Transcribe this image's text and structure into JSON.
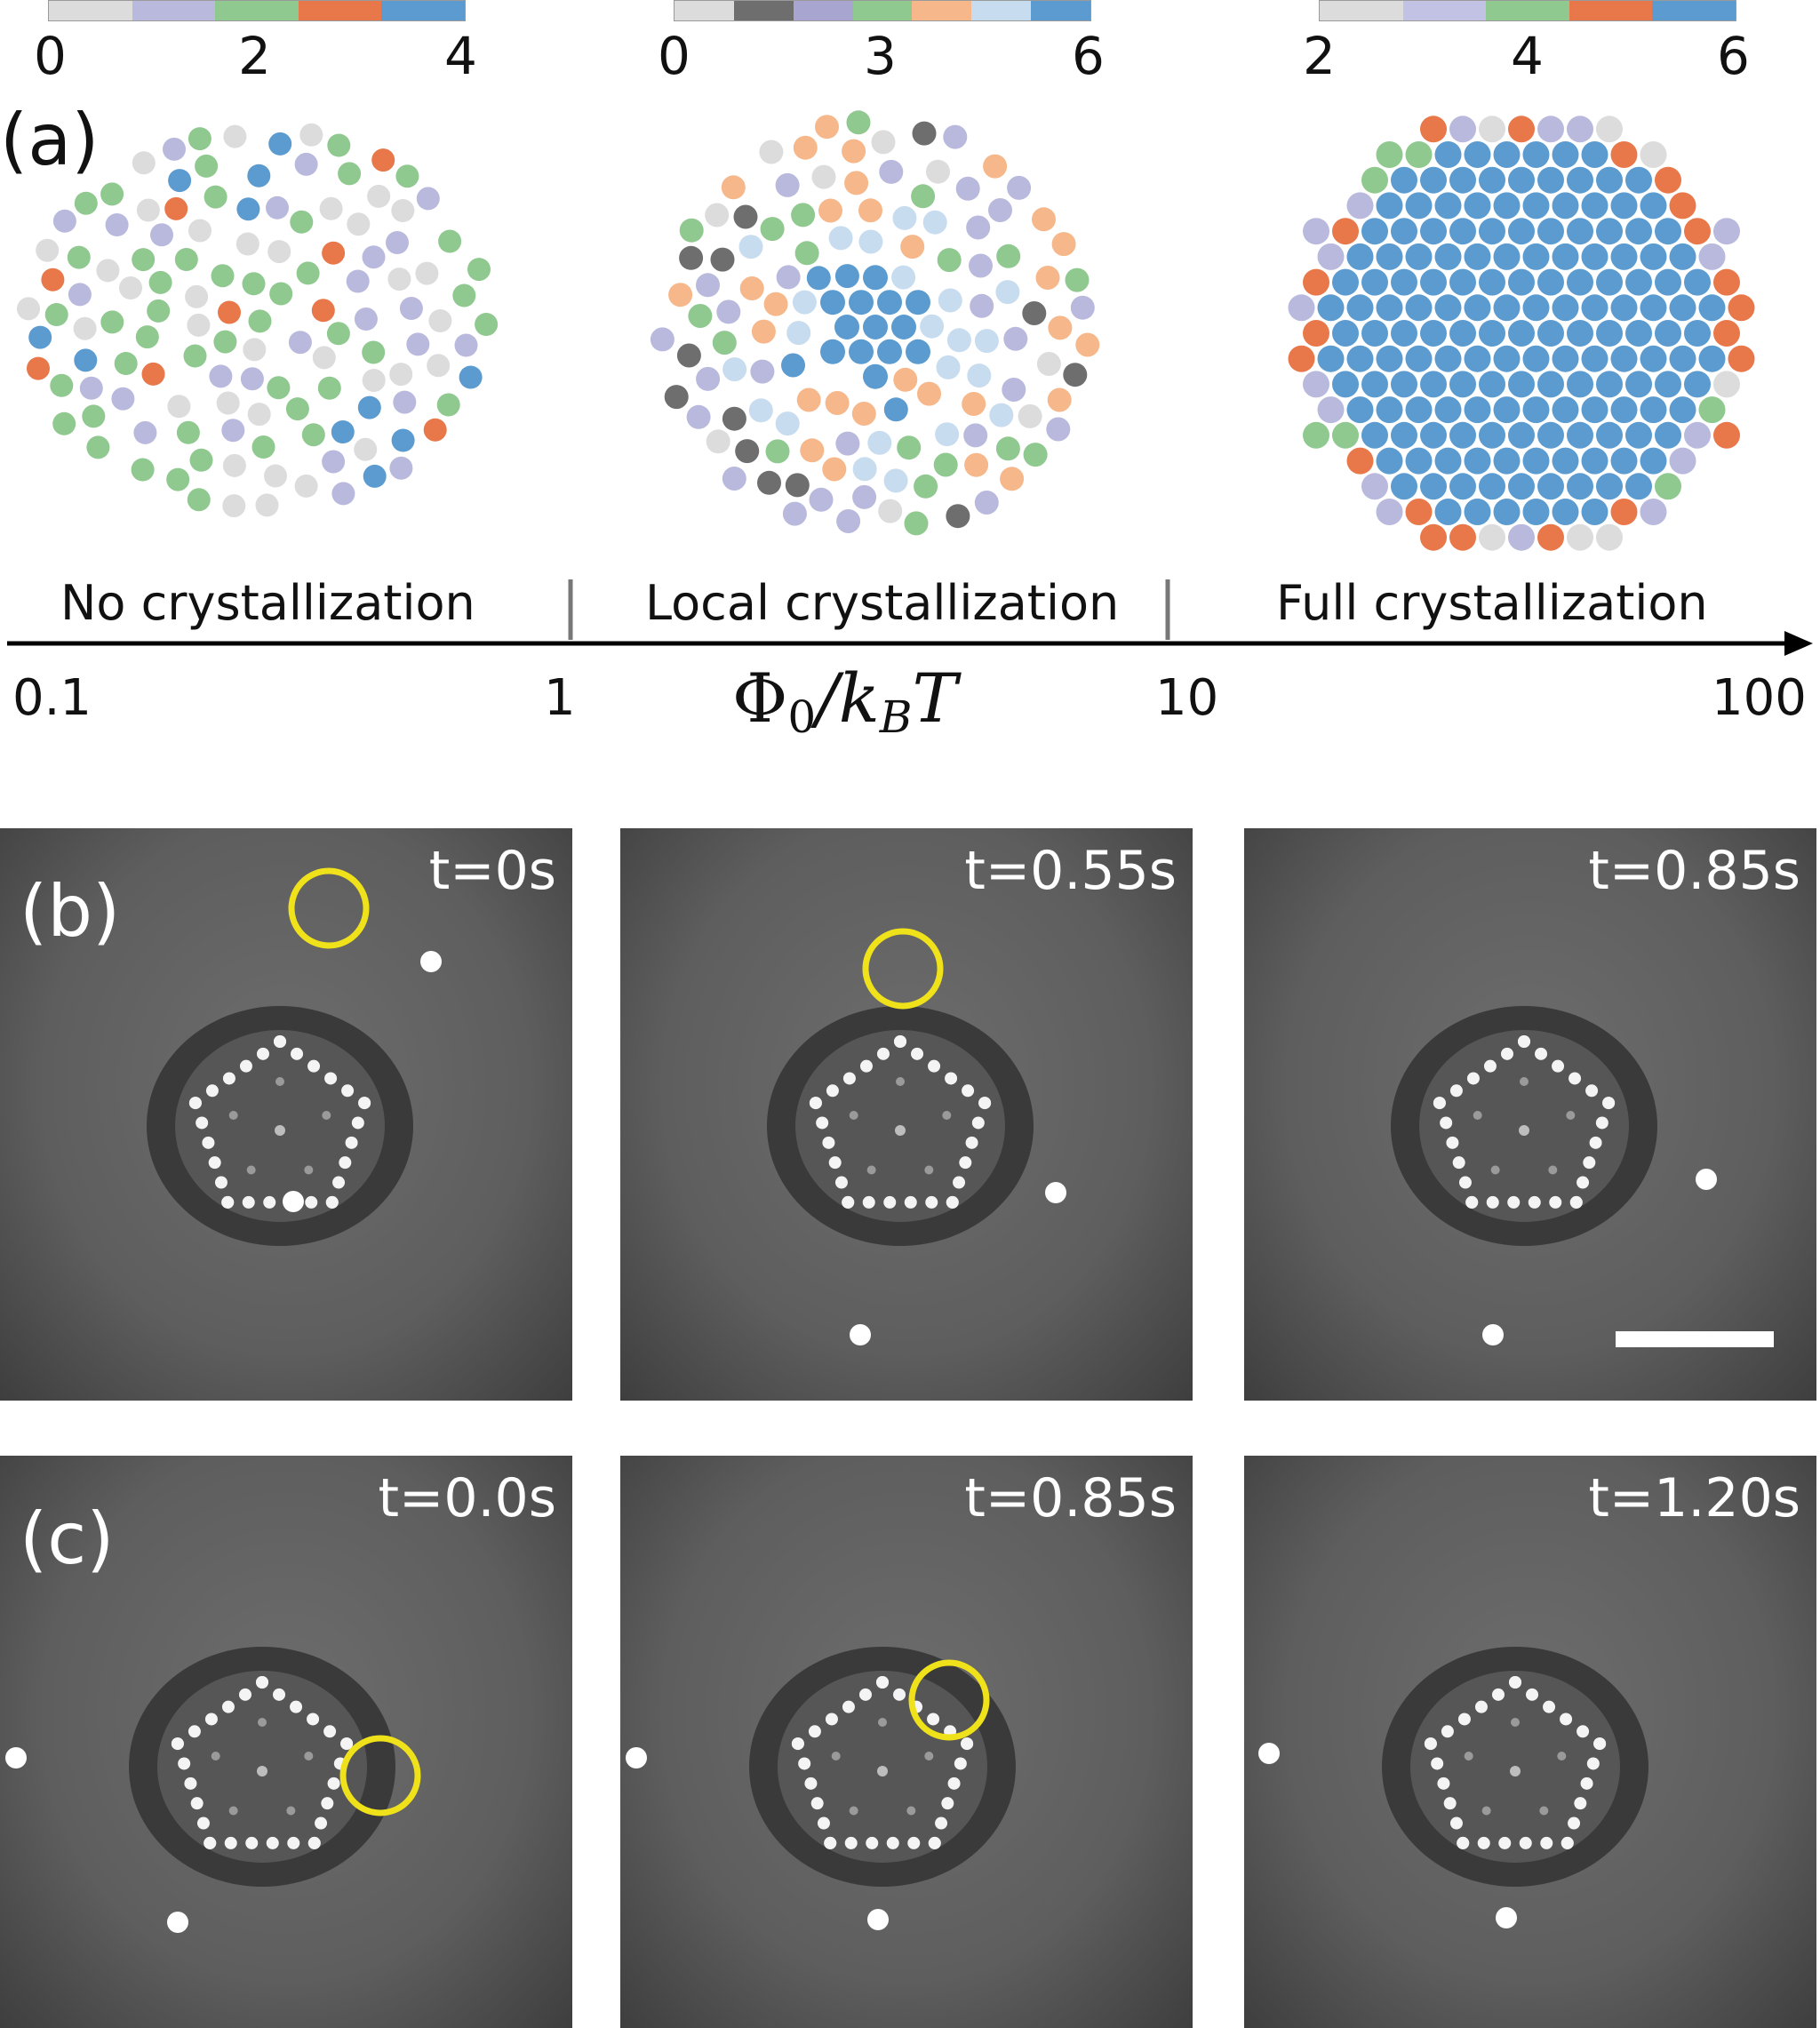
{
  "panel_a": {
    "label": "(a)",
    "colorbars": [
      {
        "ticks": [
          "0",
          "2",
          "4"
        ],
        "colors": [
          "#dcdcdc",
          "#b9b9dd",
          "#8fc98f",
          "#e8784a",
          "#5b9bd0"
        ]
      },
      {
        "ticks": [
          "0",
          "3",
          "6"
        ],
        "colors": [
          "#dcdcdc",
          "#6e6e6e",
          "#a8a6d0",
          "#8fc98f",
          "#f6b88a",
          "#c8dcf0",
          "#5b9bd0"
        ]
      },
      {
        "ticks": [
          "2",
          "4",
          "6"
        ],
        "colors": [
          "#dcdcdc",
          "#c2c2e4",
          "#8fc98f",
          "#e8784a",
          "#5b9bd0"
        ]
      }
    ],
    "regimes": [
      "No crystallization",
      "Local crystallization",
      "Full crystallization"
    ],
    "axis_ticks": [
      "0.1",
      "1",
      "10",
      "100"
    ],
    "axis_label_main": "Φ",
    "axis_label_sub0": "0",
    "axis_label_mid": "/k",
    "axis_label_subB": "B",
    "axis_label_end": "T"
  },
  "panel_b": {
    "label": "(b)",
    "times": [
      "t=0s",
      "t=0.55s",
      "t=0.85s"
    ]
  },
  "panel_c": {
    "label": "(c)",
    "times": [
      "t=0.0s",
      "t=0.85s",
      "t=1.20s"
    ]
  },
  "colors": {
    "gray": "#dcdcdc",
    "dark_gray": "#6e6e6e",
    "lavender": "#b9b9dd",
    "green": "#8fc98f",
    "orange": "#e8784a",
    "peach": "#f6b88a",
    "light_blue": "#c8dcf0",
    "blue": "#5b9bd0",
    "highlight": "#f0e21a"
  }
}
